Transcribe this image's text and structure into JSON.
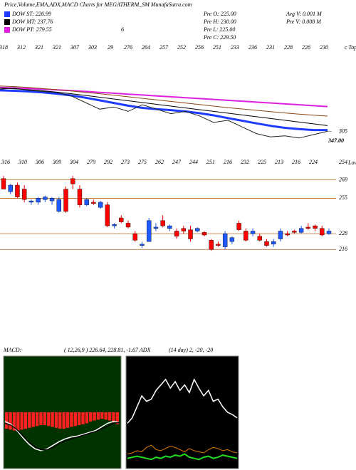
{
  "header": {
    "title": "Price,Volume,EMA,ADX,MACD Charts for MEGATHERM_SM MunafaSutra.com",
    "legend": [
      {
        "name": "DOW ST: 226.99",
        "color": "#1e3cff"
      },
      {
        "name": "DOW MT: 237.76",
        "color": "#000000"
      },
      {
        "name": "DOW PT: 279.55",
        "color": "#e020e0"
      }
    ],
    "stats": [
      "Pre O: 225.00",
      "Pre H: 230.00",
      "Pre L: 225.00",
      "Pre C: 229.50",
      "Avg V: 0.001 M",
      "Pre V: 0.008 M"
    ]
  },
  "chart_data": [
    {
      "type": "line",
      "annotations": [
        "6",
        "347.00"
      ],
      "tops_label": "c Tops",
      "tops": [
        318,
        312,
        321,
        321,
        307,
        303,
        29,
        276,
        264,
        257,
        252,
        256,
        251,
        233,
        236,
        231,
        228,
        226,
        230
      ],
      "ylim": [
        300,
        345
      ],
      "yticks": [
        305
      ],
      "series": [
        {
          "color": "#e020e0",
          "width": 2,
          "values": [
            324.8,
            324.6,
            324.3,
            324,
            323.7,
            323.4,
            323,
            322.6,
            322.2,
            321.8,
            321.4,
            321,
            320.6,
            320.2,
            319.8,
            319.4,
            319,
            318.6,
            318.2,
            317.8,
            317.4,
            317,
            316.6,
            316.2
          ]
        },
        {
          "color": "#8b4513",
          "width": 1,
          "values": [
            325.5,
            325.2,
            324.8,
            324.3,
            323.8,
            323.2,
            322.6,
            322,
            321.3,
            320.6,
            319.9,
            319.2,
            318.5,
            317.8,
            317.1,
            316.4,
            315.7,
            315.1,
            314.5,
            313.9,
            313.3,
            312.8,
            312.3,
            311.9
          ]
        },
        {
          "color": "#000000",
          "width": 1,
          "values": [
            324.5,
            324.2,
            323.8,
            323.3,
            322.7,
            322,
            321.2,
            320.4,
            319.6,
            318.8,
            318,
            317.2,
            316.4,
            315.6,
            314.8,
            314,
            313.2,
            312.4,
            311.6,
            310.8,
            310,
            309.2,
            308.4,
            307.6
          ]
        },
        {
          "color": "#1e3cff",
          "width": 3,
          "values": [
            323.5,
            323.3,
            323,
            322.6,
            322,
            321.2,
            320.2,
            319,
            317.8,
            316.6,
            315.6,
            315,
            314.6,
            314,
            313.2,
            312.2,
            311,
            309.8,
            308.6,
            307.5,
            306.6,
            306,
            305.6,
            305.6
          ]
        },
        {
          "color": "#222222",
          "width": 1,
          "values": [
            324,
            324.5,
            323.5,
            323,
            322.5,
            321,
            318,
            315,
            316,
            314,
            317,
            315,
            313,
            314,
            312,
            309,
            310,
            307,
            304,
            302.5,
            303,
            302,
            303.5,
            305
          ]
        }
      ]
    },
    {
      "type": "candlestick",
      "lows_label": "Lows",
      "annotations": [
        "254"
      ],
      "lows": [
        316,
        310,
        306,
        309,
        304,
        279,
        292,
        273,
        275,
        262,
        247,
        244,
        251,
        216,
        232,
        225,
        213,
        216,
        224
      ],
      "ylim": [
        189,
        284
      ],
      "yticks": [
        269,
        255,
        228,
        216
      ],
      "grid": true,
      "grid_color": "#b5651d",
      "up_color": "#1e5aff",
      "down_color": "#ff0000",
      "open": [
        270,
        260,
        265,
        262,
        252,
        252,
        254,
        253,
        245,
        262,
        270,
        262,
        250,
        252,
        248,
        250,
        234,
        240,
        236,
        228,
        219,
        222,
        232,
        238,
        232,
        230,
        232,
        231,
        230,
        229,
        223,
        220,
        218,
        222,
        236,
        230,
        228,
        226,
        222,
        220,
        224,
        228,
        230,
        229,
        233,
        234,
        232,
        228
      ],
      "high": [
        272,
        266,
        267,
        265,
        254,
        256,
        257,
        256,
        256,
        264,
        272,
        265,
        255,
        254,
        253,
        252,
        236,
        242,
        238,
        230,
        222,
        240,
        236,
        242,
        235,
        232,
        234,
        234,
        233,
        230,
        224,
        222,
        230,
        226,
        238,
        232,
        232,
        228,
        224,
        224,
        232,
        230,
        231,
        234,
        236,
        235,
        234,
        232
      ],
      "low": [
        262,
        258,
        255,
        252,
        250,
        250,
        252,
        250,
        244,
        244,
        262,
        248,
        249,
        250,
        247,
        233,
        232,
        236,
        232,
        222,
        217,
        222,
        230,
        233,
        230,
        224,
        228,
        222,
        229,
        226,
        215,
        218,
        216,
        220,
        230,
        222,
        226,
        222,
        218,
        218,
        222,
        226,
        228,
        228,
        231,
        230,
        226,
        227
      ],
      "close": [
        262,
        265,
        256,
        254,
        253,
        255,
        256,
        255,
        254,
        245,
        266,
        250,
        254,
        251,
        252,
        234,
        235,
        237,
        233,
        223,
        220,
        238,
        233,
        234,
        234,
        226,
        230,
        224,
        232,
        227,
        216,
        219,
        228,
        225,
        231,
        223,
        230,
        223,
        219,
        222,
        230,
        227,
        229,
        232,
        232,
        232,
        227,
        230
      ]
    },
    {
      "type": "macd",
      "label": "MACD:",
      "params": "( 12,26,9 ) 226.64, 228.81, -1.67 ADX",
      "ylim": [
        -6,
        6
      ],
      "background": "#003300",
      "histogram": {
        "color": "#ff2020",
        "values": [
          -1.8,
          -1.9,
          -2,
          -2,
          -1.9,
          -1.8,
          -1.7,
          -1.6,
          -1.5,
          -1.4,
          -1.4,
          -1.5,
          -1.6,
          -1.7,
          -1.8,
          -1.8,
          -1.7,
          -1.6,
          -1.5,
          -1.4,
          -1.3,
          -1.2,
          -1.0,
          -0.9,
          -0.8,
          -0.7,
          -0.8,
          -0.9,
          -1.1,
          -1.3
        ]
      },
      "series": [
        {
          "color": "#ffffff",
          "width": 1.5,
          "values": [
            -1,
            -1.3,
            -2,
            -2.8,
            -3.5,
            -4,
            -4.2,
            -4,
            -3.6,
            -3.2,
            -2.9,
            -2.7,
            -2.6,
            -2.4,
            -2.2,
            -2,
            -1.6,
            -1.2,
            -1,
            -1.1
          ]
        },
        {
          "color": "#000000",
          "width": 1.5,
          "values": [
            -1.2,
            -1.4,
            -1.9,
            -2.6,
            -3.3,
            -3.8,
            -4.1,
            -4.1,
            -3.8,
            -3.4,
            -3.1,
            -2.9,
            -2.7,
            -2.5,
            -2.3,
            -2.1,
            -1.8,
            -1.5,
            -1.2,
            -1.1
          ]
        }
      ]
    },
    {
      "type": "adx",
      "label": "(14 day) 2, -20, -20",
      "ylim": [
        0,
        100
      ],
      "background": "#000000",
      "series": [
        {
          "color": "#ffffff",
          "width": 1.5,
          "values": [
            40,
            45,
            55,
            65,
            60,
            62,
            70,
            75,
            80,
            72,
            78,
            70,
            75,
            68,
            80,
            72,
            65,
            70,
            60,
            62,
            55,
            50,
            48,
            45
          ]
        },
        {
          "color": "#e07b00",
          "width": 1,
          "values": [
            12,
            13,
            15,
            14,
            18,
            20,
            16,
            15,
            17,
            19,
            18,
            16,
            14,
            17,
            15,
            14,
            13,
            16,
            18,
            17,
            15,
            16,
            14,
            13
          ]
        },
        {
          "color": "#22dd22",
          "width": 2,
          "values": [
            8,
            9,
            10,
            9,
            8,
            7,
            9,
            8,
            10,
            9,
            11,
            10,
            12,
            9,
            8,
            7,
            9,
            10,
            8,
            9,
            11,
            10,
            9,
            8
          ]
        }
      ]
    }
  ]
}
